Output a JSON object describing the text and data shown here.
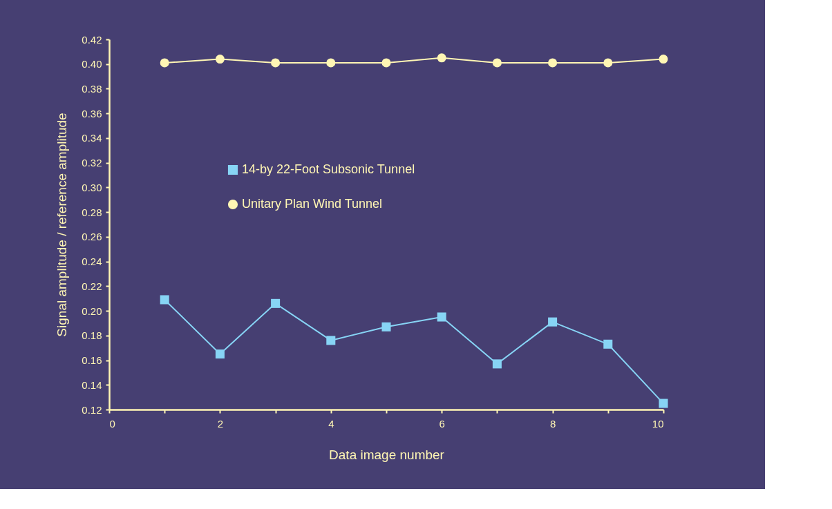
{
  "chart_data": {
    "type": "line",
    "xlabel": "Data image number",
    "ylabel": "Signal amplitude / reference amplitude",
    "x": [
      1,
      2,
      3,
      4,
      5,
      6,
      7,
      8,
      9,
      10
    ],
    "series": [
      {
        "name": "14-by 22-Foot Subsonic Tunnel",
        "color": "#87d4f5",
        "marker": "square",
        "values": [
          0.209,
          0.165,
          0.206,
          0.176,
          0.187,
          0.195,
          0.157,
          0.191,
          0.173,
          0.125
        ]
      },
      {
        "name": "Unitary Plan Wind Tunnel",
        "color": "#fff6b4",
        "marker": "circle",
        "values": [
          0.401,
          0.404,
          0.401,
          0.401,
          0.401,
          0.405,
          0.401,
          0.401,
          0.401,
          0.404
        ]
      }
    ],
    "xlim": [
      0,
      10
    ],
    "xticks": [
      0,
      {
        "value": 1,
        "label": null
      },
      2,
      {
        "value": 3,
        "label": null
      },
      4,
      {
        "value": 5,
        "label": null
      },
      6,
      {
        "value": 7,
        "label": null
      },
      8,
      {
        "value": 9,
        "label": null
      },
      10
    ],
    "ylim": [
      0.12,
      0.42
    ],
    "yticks": [
      0.12,
      0.14,
      0.16,
      0.18,
      {
        "value": 0.2,
        "label": "0.20"
      },
      0.22,
      0.24,
      0.26,
      0.28,
      {
        "value": 0.3,
        "label": "0.30"
      },
      0.32,
      0.34,
      0.36,
      0.38,
      {
        "value": 0.4,
        "label": "0.40"
      },
      0.42
    ],
    "grid": false,
    "legend": "left",
    "line_style": "solid"
  }
}
